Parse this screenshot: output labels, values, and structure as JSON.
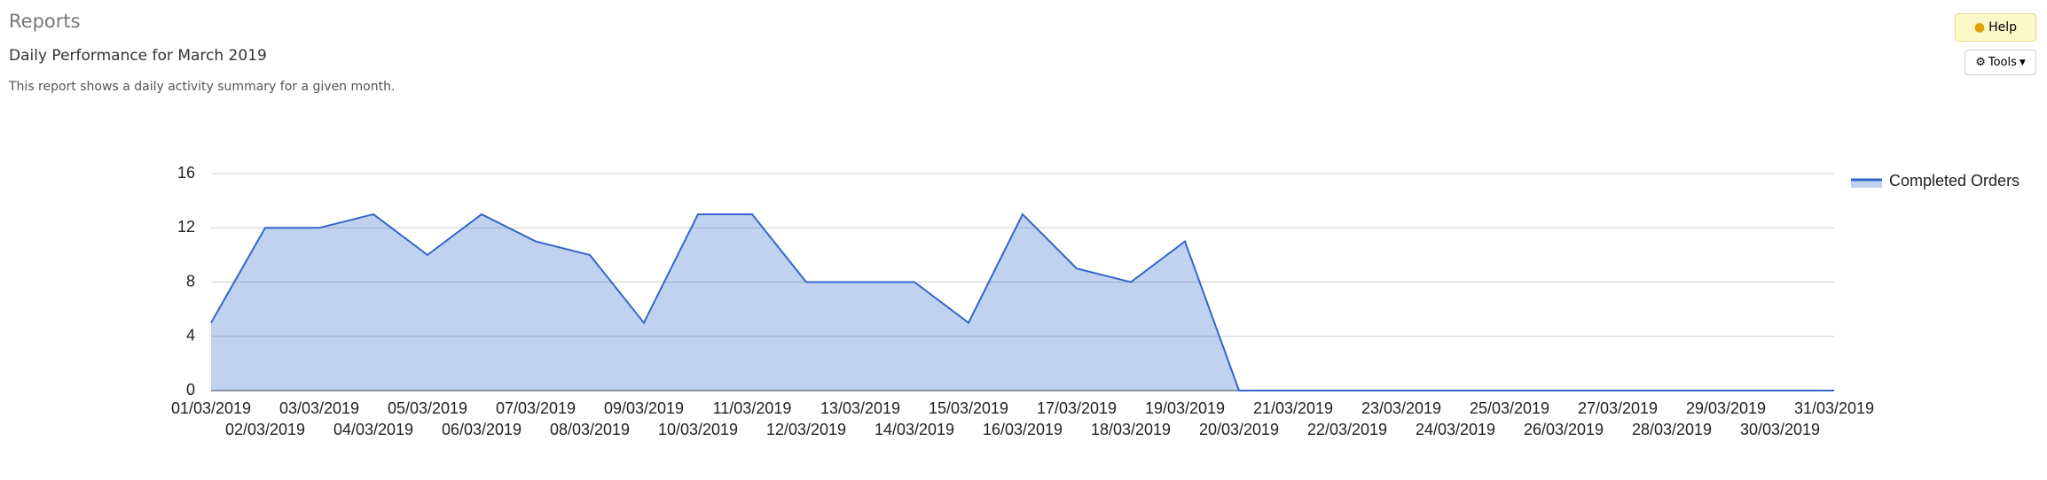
{
  "page": {
    "section": "Reports",
    "heading": "Daily Performance for March 2019",
    "description": "This report shows a daily activity summary for a given month.",
    "help": "Help",
    "tools": "Tools"
  },
  "chart_data": {
    "type": "area",
    "categories": [
      "01/03/2019",
      "02/03/2019",
      "03/03/2019",
      "04/03/2019",
      "05/03/2019",
      "06/03/2019",
      "07/03/2019",
      "08/03/2019",
      "09/03/2019",
      "10/03/2019",
      "11/03/2019",
      "12/03/2019",
      "13/03/2019",
      "14/03/2019",
      "15/03/2019",
      "16/03/2019",
      "17/03/2019",
      "18/03/2019",
      "19/03/2019",
      "20/03/2019",
      "21/03/2019",
      "22/03/2019",
      "23/03/2019",
      "24/03/2019",
      "25/03/2019",
      "26/03/2019",
      "27/03/2019",
      "28/03/2019",
      "29/03/2019",
      "30/03/2019",
      "31/03/2019"
    ],
    "series": [
      {
        "name": "Completed Orders",
        "color": "#3366cc",
        "values": [
          5,
          12,
          12,
          13,
          10,
          13,
          11,
          10,
          5,
          13,
          13,
          8,
          8,
          8,
          5,
          13,
          9,
          8,
          11,
          0,
          0,
          0,
          0,
          0,
          0,
          0,
          0,
          0,
          0,
          0,
          0
        ]
      }
    ],
    "ylim": [
      0,
      16
    ],
    "yticks": [
      0,
      4,
      8,
      12,
      16
    ],
    "grid": true,
    "legend": "right"
  }
}
